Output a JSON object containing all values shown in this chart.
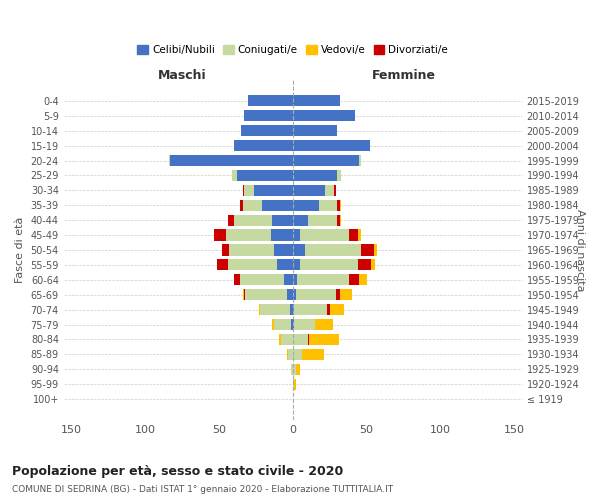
{
  "age_groups": [
    "100+",
    "95-99",
    "90-94",
    "85-89",
    "80-84",
    "75-79",
    "70-74",
    "65-69",
    "60-64",
    "55-59",
    "50-54",
    "45-49",
    "40-44",
    "35-39",
    "30-34",
    "25-29",
    "20-24",
    "15-19",
    "10-14",
    "5-9",
    "0-4"
  ],
  "birth_years": [
    "≤ 1919",
    "1920-1924",
    "1925-1929",
    "1930-1934",
    "1935-1939",
    "1940-1944",
    "1945-1949",
    "1950-1954",
    "1955-1959",
    "1960-1964",
    "1965-1969",
    "1970-1974",
    "1975-1979",
    "1980-1984",
    "1985-1989",
    "1990-1994",
    "1995-1999",
    "2000-2004",
    "2005-2009",
    "2010-2014",
    "2015-2019"
  ],
  "male_celibi": [
    0,
    0,
    0,
    0,
    0,
    1,
    2,
    4,
    6,
    11,
    13,
    15,
    14,
    21,
    26,
    38,
    83,
    40,
    35,
    33,
    30
  ],
  "male_coniugati": [
    0,
    0,
    1,
    3,
    8,
    12,
    20,
    28,
    30,
    33,
    30,
    30,
    26,
    13,
    7,
    3,
    1,
    0,
    0,
    0,
    0
  ],
  "male_vedovi": [
    0,
    0,
    0,
    1,
    1,
    1,
    1,
    1,
    0,
    0,
    0,
    0,
    0,
    0,
    0,
    0,
    0,
    0,
    0,
    0,
    0
  ],
  "male_divorziati": [
    0,
    0,
    0,
    0,
    0,
    0,
    0,
    1,
    4,
    7,
    5,
    8,
    4,
    2,
    1,
    0,
    0,
    0,
    0,
    0,
    0
  ],
  "female_nubili": [
    0,
    0,
    0,
    0,
    0,
    1,
    1,
    2,
    3,
    5,
    8,
    5,
    10,
    18,
    22,
    30,
    45,
    52,
    30,
    42,
    32
  ],
  "female_coniugate": [
    0,
    1,
    2,
    6,
    10,
    14,
    22,
    27,
    35,
    39,
    38,
    33,
    20,
    12,
    6,
    3,
    1,
    0,
    0,
    0,
    0
  ],
  "female_vedove": [
    0,
    1,
    3,
    15,
    20,
    12,
    10,
    8,
    5,
    3,
    2,
    2,
    1,
    1,
    0,
    0,
    0,
    0,
    0,
    0,
    0
  ],
  "female_divorziate": [
    0,
    0,
    0,
    0,
    1,
    0,
    2,
    3,
    7,
    9,
    9,
    6,
    2,
    2,
    1,
    0,
    0,
    0,
    0,
    0,
    0
  ],
  "colors": {
    "celibi": "#4472c4",
    "coniugati": "#c5d9a0",
    "vedovi": "#ffc000",
    "divorziati": "#cc0000"
  },
  "title": "Popolazione per età, sesso e stato civile - 2020",
  "subtitle": "COMUNE DI SEDRINA (BG) - Dati ISTAT 1° gennaio 2020 - Elaborazione TUTTITALIA.IT",
  "xlabel_left": "Maschi",
  "xlabel_right": "Femmine",
  "ylabel_left": "Fasce di età",
  "ylabel_right": "Anni di nascita",
  "xlim": 155,
  "background_color": "#ffffff",
  "grid_color": "#cccccc"
}
